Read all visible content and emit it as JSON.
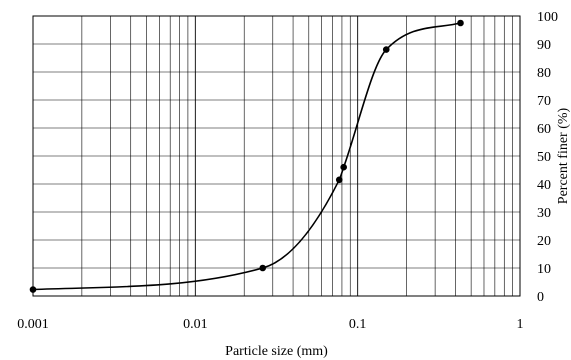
{
  "chart_data": {
    "type": "line",
    "x_scale": "log",
    "xlabel": "Particle size (mm)",
    "ylabel": "Percent finer (%)",
    "xlim": [
      0.001,
      1
    ],
    "ylim": [
      0,
      100
    ],
    "grid": true,
    "x_ticks": [
      "0.001",
      "0.01",
      "0.1",
      "1"
    ],
    "y_ticks": [
      "0",
      "10",
      "20",
      "30",
      "40",
      "50",
      "60",
      "70",
      "80",
      "90",
      "100"
    ],
    "series": [
      {
        "points": [
          {
            "x": 0.001,
            "y": 2.3
          },
          {
            "x": 0.026,
            "y": 10.0
          },
          {
            "x": 0.077,
            "y": 41.5
          },
          {
            "x": 0.082,
            "y": 46.0
          },
          {
            "x": 0.15,
            "y": 88.0
          },
          {
            "x": 0.43,
            "y": 97.5
          }
        ]
      }
    ]
  }
}
